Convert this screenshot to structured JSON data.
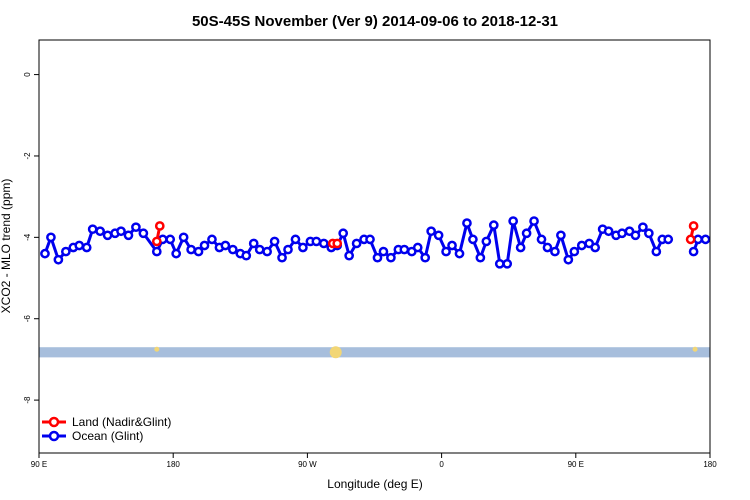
{
  "chart_data": {
    "type": "line",
    "title": "50S-45S November (Ver 9)   2014-09-06 to 2018-12-31",
    "xlabel": "Longitude (deg E)",
    "ylabel": "XCO2 - MLO trend (ppm)",
    "x_tick_labels": [
      "90 E",
      "180",
      "90 W",
      "0",
      "90 E",
      "180"
    ],
    "x_ticks": [
      90,
      180,
      270,
      360,
      450,
      540
    ],
    "y_ticks": [
      0,
      -2,
      -4,
      -6,
      -8
    ],
    "xlim": [
      90,
      540
    ],
    "ylim": [
      -9.3,
      0.85
    ],
    "grid": false,
    "legend_position": "bottom-left",
    "colors": {
      "land": "#ff0000",
      "ocean": "#0000ee",
      "band": "#a7bedc",
      "band_marker": "#f2d675",
      "axis": "#000000"
    },
    "band": {
      "y_from": -6.95,
      "y_to": -6.7
    },
    "band_markers": [
      {
        "x": 169,
        "size": "small"
      },
      {
        "x": 289,
        "size": "large"
      },
      {
        "x": 530,
        "size": "small"
      }
    ],
    "series": [
      {
        "name": "Land (Nadir&Glint)",
        "color": "#ff0000",
        "points": [
          [
            169,
            -4.1
          ],
          [
            171,
            -3.72
          ],
          [
            287,
            -4.15
          ],
          [
            290,
            -4.15
          ],
          [
            527,
            -4.05
          ],
          [
            529,
            -3.72
          ]
        ]
      },
      {
        "name": "Ocean (Glint)",
        "color": "#0000ee",
        "points": [
          [
            94,
            -4.4
          ],
          [
            98,
            -4.0
          ],
          [
            103,
            -4.55
          ],
          [
            108,
            -4.35
          ],
          [
            113,
            -4.25
          ],
          [
            117,
            -4.2
          ],
          [
            122,
            -4.25
          ],
          [
            126,
            -3.8
          ],
          [
            131,
            -3.85
          ],
          [
            136,
            -3.95
          ],
          [
            141,
            -3.9
          ],
          [
            145,
            -3.85
          ],
          [
            150,
            -3.95
          ],
          [
            155,
            -3.75
          ],
          [
            160,
            -3.9
          ],
          [
            169,
            -4.35
          ],
          [
            173,
            -4.05
          ],
          [
            178,
            -4.05
          ],
          [
            182,
            -4.4
          ],
          [
            187,
            -4.0
          ],
          [
            192,
            -4.3
          ],
          [
            197,
            -4.35
          ],
          [
            201,
            -4.2
          ],
          [
            206,
            -4.05
          ],
          [
            211,
            -4.25
          ],
          [
            215,
            -4.2
          ],
          [
            220,
            -4.3
          ],
          [
            225,
            -4.4
          ],
          [
            229,
            -4.45
          ],
          [
            234,
            -4.15
          ],
          [
            238,
            -4.3
          ],
          [
            243,
            -4.35
          ],
          [
            248,
            -4.1
          ],
          [
            253,
            -4.5
          ],
          [
            257,
            -4.3
          ],
          [
            262,
            -4.05
          ],
          [
            267,
            -4.25
          ],
          [
            272,
            -4.1
          ],
          [
            276,
            -4.1
          ],
          [
            281,
            -4.15
          ],
          [
            286,
            -4.25
          ],
          [
            290,
            -4.2
          ],
          [
            294,
            -3.9
          ],
          [
            298,
            -4.45
          ],
          [
            303,
            -4.15
          ],
          [
            308,
            -4.05
          ],
          [
            312,
            -4.05
          ],
          [
            317,
            -4.5
          ],
          [
            321,
            -4.35
          ],
          [
            326,
            -4.5
          ],
          [
            331,
            -4.3
          ],
          [
            335,
            -4.3
          ],
          [
            340,
            -4.35
          ],
          [
            344,
            -4.25
          ],
          [
            349,
            -4.5
          ],
          [
            353,
            -3.85
          ],
          [
            358,
            -3.95
          ],
          [
            363,
            -4.35
          ],
          [
            367,
            -4.2
          ],
          [
            372,
            -4.4
          ],
          [
            377,
            -3.65
          ],
          [
            381,
            -4.05
          ],
          [
            386,
            -4.5
          ],
          [
            390,
            -4.1
          ],
          [
            395,
            -3.7
          ],
          [
            399,
            -4.65
          ],
          [
            404,
            -4.65
          ],
          [
            408,
            -3.6
          ],
          [
            413,
            -4.25
          ],
          [
            417,
            -3.9
          ],
          [
            422,
            -3.6
          ],
          [
            427,
            -4.05
          ],
          [
            431,
            -4.25
          ],
          [
            436,
            -4.35
          ],
          [
            440,
            -3.95
          ],
          [
            445,
            -4.55
          ],
          [
            449,
            -4.35
          ],
          [
            454,
            -4.2
          ],
          [
            459,
            -4.15
          ],
          [
            463,
            -4.25
          ],
          [
            468,
            -3.8
          ],
          [
            472,
            -3.85
          ],
          [
            477,
            -3.95
          ],
          [
            481,
            -3.9
          ],
          [
            486,
            -3.85
          ],
          [
            490,
            -3.95
          ],
          [
            495,
            -3.75
          ],
          [
            499,
            -3.9
          ],
          [
            504,
            -4.35
          ],
          [
            508,
            -4.05
          ],
          [
            512,
            -4.05
          ],
          [
            529,
            -4.35
          ],
          [
            532,
            -4.05
          ],
          [
            537,
            -4.05
          ]
        ]
      }
    ]
  }
}
